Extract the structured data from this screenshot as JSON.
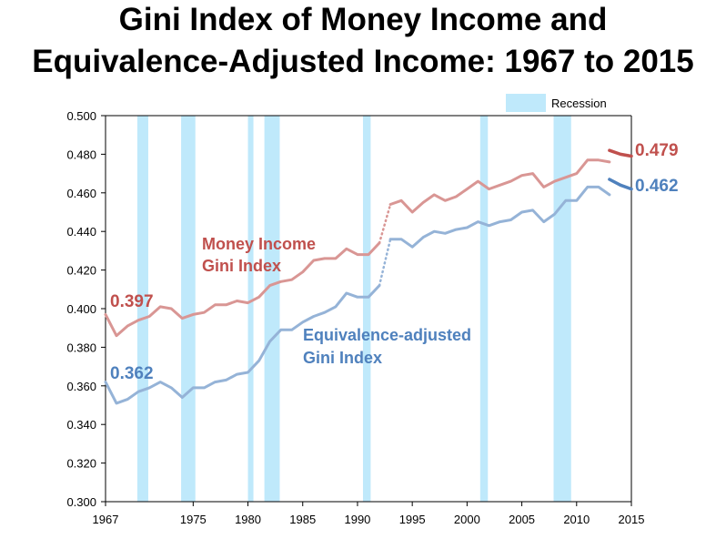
{
  "title_line1": "Gini Index of Money Income and",
  "title_line2": "Equivalence-Adjusted Income: 1967 to 2015",
  "colors": {
    "money": "#c0504d",
    "money_light": "#d99694",
    "equiv": "#4f81bd",
    "equiv_light": "#95b3d7",
    "recession": "#bfe9fb"
  },
  "chart_data": {
    "type": "line",
    "xlim": [
      1967,
      2015
    ],
    "ylim": [
      0.3,
      0.5
    ],
    "x_ticks": [
      "1967",
      "1975",
      "1980",
      "1985",
      "1990",
      "1995",
      "2000",
      "2005",
      "2010",
      "2015"
    ],
    "y_ticks": [
      "0.300",
      "0.320",
      "0.340",
      "0.360",
      "0.380",
      "0.400",
      "0.420",
      "0.440",
      "0.460",
      "0.480",
      "0.500"
    ],
    "grid": false,
    "legend": {
      "label": "Recession",
      "position": "top-right"
    },
    "recessions": [
      [
        1969.9,
        1970.9
      ],
      [
        1973.9,
        1975.2
      ],
      [
        1980.0,
        1980.5
      ],
      [
        1981.5,
        1982.9
      ],
      [
        1990.5,
        1991.2
      ],
      [
        2001.2,
        2001.9
      ],
      [
        2007.9,
        2009.5
      ]
    ],
    "series": [
      {
        "name": "Money Income Gini Index",
        "label_lines": [
          "Money Income",
          "Gini Index"
        ],
        "start_label": "0.397",
        "end_label": "0.479",
        "segments": [
          {
            "style": "light",
            "points": [
              [
                1967,
                0.397
              ],
              [
                1968,
                0.386
              ],
              [
                1969,
                0.391
              ],
              [
                1970,
                0.394
              ],
              [
                1971,
                0.396
              ],
              [
                1972,
                0.401
              ],
              [
                1973,
                0.4
              ],
              [
                1974,
                0.395
              ],
              [
                1975,
                0.397
              ],
              [
                1976,
                0.398
              ],
              [
                1977,
                0.402
              ],
              [
                1978,
                0.402
              ],
              [
                1979,
                0.404
              ],
              [
                1980,
                0.403
              ],
              [
                1981,
                0.406
              ],
              [
                1982,
                0.412
              ],
              [
                1983,
                0.414
              ],
              [
                1984,
                0.415
              ],
              [
                1985,
                0.419
              ],
              [
                1986,
                0.425
              ],
              [
                1987,
                0.426
              ],
              [
                1988,
                0.426
              ],
              [
                1989,
                0.431
              ],
              [
                1990,
                0.428
              ],
              [
                1991,
                0.428
              ],
              [
                1992,
                0.434
              ]
            ]
          },
          {
            "style": "dotted",
            "points": [
              [
                1992,
                0.434
              ],
              [
                1993,
                0.454
              ]
            ]
          },
          {
            "style": "light",
            "points": [
              [
                1993,
                0.454
              ],
              [
                1994,
                0.456
              ],
              [
                1995,
                0.45
              ],
              [
                1996,
                0.455
              ],
              [
                1997,
                0.459
              ],
              [
                1998,
                0.456
              ],
              [
                1999,
                0.458
              ],
              [
                2000,
                0.462
              ],
              [
                2001,
                0.466
              ],
              [
                2002,
                0.462
              ],
              [
                2003,
                0.464
              ],
              [
                2004,
                0.466
              ],
              [
                2005,
                0.469
              ],
              [
                2006,
                0.47
              ],
              [
                2007,
                0.463
              ],
              [
                2008,
                0.466
              ],
              [
                2009,
                0.468
              ],
              [
                2010,
                0.47
              ],
              [
                2011,
                0.477
              ],
              [
                2012,
                0.477
              ],
              [
                2013,
                0.476
              ]
            ]
          },
          {
            "style": "dark",
            "points": [
              [
                2013,
                0.482
              ],
              [
                2014,
                0.48
              ],
              [
                2015,
                0.479
              ]
            ]
          }
        ]
      },
      {
        "name": "Equivalence-adjusted Gini Index",
        "label_lines": [
          "Equivalence-adjusted",
          "Gini Index"
        ],
        "start_label": "0.362",
        "end_label": "0.462",
        "segments": [
          {
            "style": "light",
            "points": [
              [
                1967,
                0.362
              ],
              [
                1968,
                0.351
              ],
              [
                1969,
                0.353
              ],
              [
                1970,
                0.357
              ],
              [
                1971,
                0.359
              ],
              [
                1972,
                0.362
              ],
              [
                1973,
                0.359
              ],
              [
                1974,
                0.354
              ],
              [
                1975,
                0.359
              ],
              [
                1976,
                0.359
              ],
              [
                1977,
                0.362
              ],
              [
                1978,
                0.363
              ],
              [
                1979,
                0.366
              ],
              [
                1980,
                0.367
              ],
              [
                1981,
                0.373
              ],
              [
                1982,
                0.383
              ],
              [
                1983,
                0.389
              ],
              [
                1984,
                0.389
              ],
              [
                1985,
                0.393
              ],
              [
                1986,
                0.396
              ],
              [
                1987,
                0.398
              ],
              [
                1988,
                0.401
              ],
              [
                1989,
                0.408
              ],
              [
                1990,
                0.406
              ],
              [
                1991,
                0.406
              ],
              [
                1992,
                0.412
              ]
            ]
          },
          {
            "style": "dotted",
            "points": [
              [
                1992,
                0.412
              ],
              [
                1993,
                0.436
              ]
            ]
          },
          {
            "style": "light",
            "points": [
              [
                1993,
                0.436
              ],
              [
                1994,
                0.436
              ],
              [
                1995,
                0.432
              ],
              [
                1996,
                0.437
              ],
              [
                1997,
                0.44
              ],
              [
                1998,
                0.439
              ],
              [
                1999,
                0.441
              ],
              [
                2000,
                0.442
              ],
              [
                2001,
                0.445
              ],
              [
                2002,
                0.443
              ],
              [
                2003,
                0.445
              ],
              [
                2004,
                0.446
              ],
              [
                2005,
                0.45
              ],
              [
                2006,
                0.451
              ],
              [
                2007,
                0.445
              ],
              [
                2008,
                0.449
              ],
              [
                2009,
                0.456
              ],
              [
                2010,
                0.456
              ],
              [
                2011,
                0.463
              ],
              [
                2012,
                0.463
              ],
              [
                2013,
                0.459
              ]
            ]
          },
          {
            "style": "dark",
            "points": [
              [
                2013,
                0.467
              ],
              [
                2014,
                0.464
              ],
              [
                2015,
                0.462
              ]
            ]
          }
        ]
      }
    ]
  }
}
